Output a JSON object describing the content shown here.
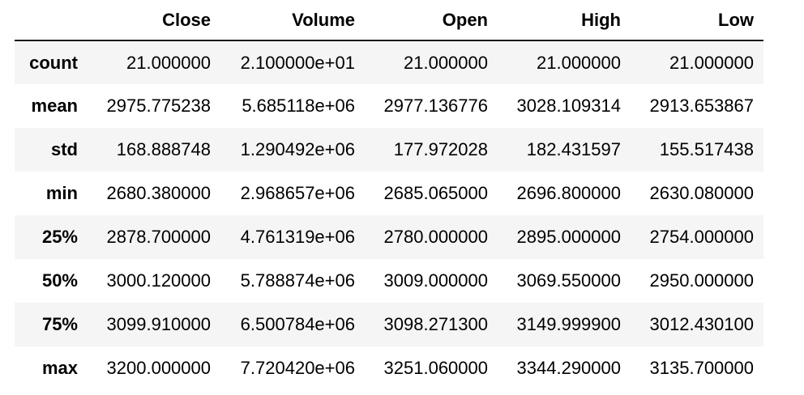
{
  "table": {
    "columns": [
      "",
      "Close",
      "Volume",
      "Open",
      "High",
      "Low"
    ],
    "rows": [
      {
        "label": "count",
        "values": [
          "21.000000",
          "2.100000e+01",
          "21.000000",
          "21.000000",
          "21.000000"
        ]
      },
      {
        "label": "mean",
        "values": [
          "2975.775238",
          "5.685118e+06",
          "2977.136776",
          "3028.109314",
          "2913.653867"
        ]
      },
      {
        "label": "std",
        "values": [
          "168.888748",
          "1.290492e+06",
          "177.972028",
          "182.431597",
          "155.517438"
        ]
      },
      {
        "label": "min",
        "values": [
          "2680.380000",
          "2.968657e+06",
          "2685.065000",
          "2696.800000",
          "2630.080000"
        ]
      },
      {
        "label": "25%",
        "values": [
          "2878.700000",
          "4.761319e+06",
          "2780.000000",
          "2895.000000",
          "2754.000000"
        ]
      },
      {
        "label": "50%",
        "values": [
          "3000.120000",
          "5.788874e+06",
          "3009.000000",
          "3069.550000",
          "2950.000000"
        ]
      },
      {
        "label": "75%",
        "values": [
          "3099.910000",
          "6.500784e+06",
          "3098.271300",
          "3149.999900",
          "3012.430100"
        ]
      },
      {
        "label": "max",
        "values": [
          "3200.000000",
          "7.720420e+06",
          "3251.060000",
          "3344.290000",
          "3135.700000"
        ]
      }
    ]
  }
}
